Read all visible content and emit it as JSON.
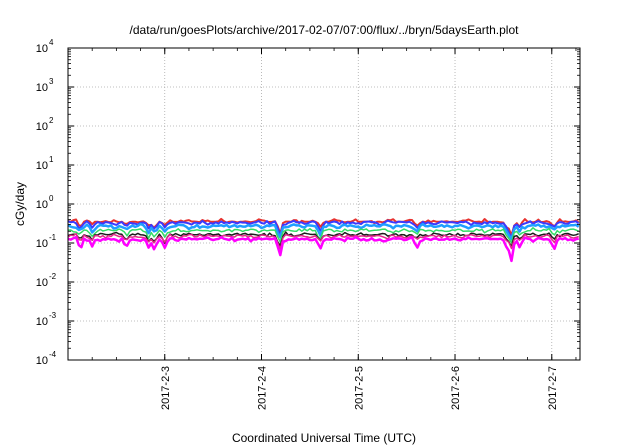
{
  "chart_data": {
    "type": "line",
    "title": "/data/run/goesPlots/archive/2017-02-07/07:00/flux/../bryn/5daysEarth.plot",
    "xlabel": "Coordinated Universal Time (UTC)",
    "ylabel": "cGy/day",
    "y_scale": "log",
    "ylim": [
      0.0001,
      10000
    ],
    "y_ticks": [
      {
        "base": "10",
        "exp": "-4"
      },
      {
        "base": "10",
        "exp": "-3"
      },
      {
        "base": "10",
        "exp": "-2"
      },
      {
        "base": "10",
        "exp": "-1"
      },
      {
        "base": "10",
        "exp": "0"
      },
      {
        "base": "10",
        "exp": "1"
      },
      {
        "base": "10",
        "exp": "2"
      },
      {
        "base": "10",
        "exp": "3"
      },
      {
        "base": "10",
        "exp": "4"
      }
    ],
    "xlim": [
      "2017-02-02T00:00",
      "2017-02-07T07:00"
    ],
    "x_ticks": [
      {
        "label": "2017-2-3",
        "date": "2017-02-03T00:00"
      },
      {
        "label": "2017-2-4",
        "date": "2017-02-04T00:00"
      },
      {
        "label": "2017-2-5",
        "date": "2017-02-05T00:00"
      },
      {
        "label": "2017-2-6",
        "date": "2017-02-06T00:00"
      },
      {
        "label": "2017-2-7",
        "date": "2017-02-07T00:00"
      }
    ],
    "grid": true,
    "dips": [
      {
        "date": "2017-02-02T03:00",
        "depth": 0.55
      },
      {
        "date": "2017-02-02T06:00",
        "depth": 0.6
      },
      {
        "date": "2017-02-02T14:30",
        "depth": 0.6
      },
      {
        "date": "2017-02-02T20:00",
        "depth": 0.55
      },
      {
        "date": "2017-02-02T21:30",
        "depth": 0.5
      },
      {
        "date": "2017-02-03T00:00",
        "depth": 0.55
      },
      {
        "date": "2017-02-04T04:30",
        "depth": 0.25
      },
      {
        "date": "2017-02-04T14:30",
        "depth": 0.45
      },
      {
        "date": "2017-02-05T14:30",
        "depth": 0.6
      },
      {
        "date": "2017-02-06T13:00",
        "depth": 0.5
      },
      {
        "date": "2017-02-06T14:00",
        "depth": 0.3
      },
      {
        "date": "2017-02-06T16:00",
        "depth": 0.6
      },
      {
        "date": "2017-02-07T00:30",
        "depth": 0.55
      }
    ],
    "series": [
      {
        "color": "#e8322f",
        "base_value": 0.36,
        "width": 2
      },
      {
        "color": "#3a3aff",
        "base_value": 0.33,
        "width": 2
      },
      {
        "color": "#1f9fff",
        "base_value": 0.27,
        "width": 2.5
      },
      {
        "color": "#33dd66",
        "base_value": 0.21,
        "width": 1.5
      },
      {
        "color": "#1b1b1b",
        "base_value": 0.165,
        "width": 1.5
      },
      {
        "color": "#e22a8a",
        "base_value": 0.15,
        "width": 1.5
      },
      {
        "color": "#ff00ff",
        "base_value": 0.125,
        "width": 2.5
      }
    ]
  }
}
